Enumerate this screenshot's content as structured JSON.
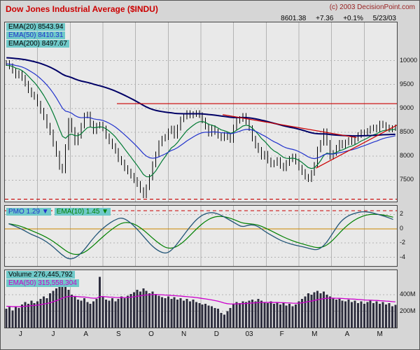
{
  "header": {
    "title": "Dow Jones Industrial Average ($INDU)",
    "copyright": "(c) 2003 DecisionPoint.com",
    "quote": {
      "last": "8601.38",
      "change": "+7.36",
      "change_pct": "+0.1%",
      "date": "5/23/03"
    }
  },
  "x_axis": {
    "month_labels": [
      "J",
      "J",
      "A",
      "S",
      "O",
      "N",
      "D",
      "03",
      "F",
      "M",
      "A",
      "M"
    ]
  },
  "colors": {
    "title": "#cc0000",
    "copyright": "#992222",
    "legend_bg": "#6fc9c9",
    "page_bg": "#d6d6d6",
    "plot_bg": "#e9e9e9",
    "grid": "#b3b3b3",
    "price_bar": "#000000",
    "trendline": "#cc0000",
    "ema20": "#007a33",
    "ema50": "#2233cc",
    "ema200": "#000066",
    "pmo": "#225577",
    "pmo_ema": "#008000",
    "zero_line": "#cc8800",
    "volume_bar": "#2e2e3e",
    "volume_ema": "#cc00cc"
  },
  "chart_data": [
    {
      "type": "ohlc-bar",
      "name": "price",
      "title": "Dow Jones Industrial Average ($INDU)",
      "y_axis": {
        "min": 7050,
        "max": 10800,
        "ticks": [
          10000,
          9500,
          9000,
          8500,
          8000,
          7500
        ]
      },
      "legend": [
        {
          "label": "EMA(20)",
          "value": "8543.94",
          "text_color": "#000000"
        },
        {
          "label": "EMA(50)",
          "value": "8410.31",
          "text_color": "#2233cc"
        },
        {
          "label": "EMA(200)",
          "value": "8497.67",
          "text_color": "#000000"
        }
      ],
      "closes": [
        9950,
        9880,
        9790,
        9690,
        9740,
        9640,
        9520,
        9380,
        9290,
        9240,
        9100,
        8950,
        8820,
        8640,
        8500,
        8260,
        8050,
        7780,
        7702,
        8190,
        8740,
        8550,
        8290,
        8430,
        8640,
        8850,
        8870,
        8680,
        8520,
        8640,
        8660,
        8580,
        8420,
        8310,
        8210,
        8110,
        7940,
        7870,
        7750,
        7680,
        7590,
        7500,
        7420,
        7290,
        7180,
        7350,
        7560,
        7830,
        8040,
        8270,
        8370,
        8400,
        8520,
        8580,
        8430,
        8600,
        8770,
        8830,
        8900,
        8850,
        8880,
        8900,
        8860,
        8750,
        8620,
        8470,
        8590,
        8510,
        8430,
        8380,
        8450,
        8400,
        8340,
        8600,
        8740,
        8780,
        8840,
        8720,
        8590,
        8370,
        8220,
        8130,
        7990,
        8050,
        7910,
        7830,
        7860,
        7920,
        7800,
        7750,
        7860,
        7940,
        7990,
        7890,
        7760,
        7670,
        7570,
        7520,
        7650,
        7820,
        8140,
        8280,
        8520,
        8280,
        7990,
        8070,
        8180,
        8280,
        8220,
        8290,
        8340,
        8300,
        8370,
        8440,
        8500,
        8480,
        8530,
        8580,
        8600,
        8560,
        8680,
        8650,
        8600,
        8560,
        8590,
        8601
      ],
      "bar_extension": 60,
      "emas": [
        {
          "label": "EMA(20)",
          "alpha": 0.18,
          "seed": 9900,
          "color_key": "ema20",
          "width": 1.2
        },
        {
          "label": "EMA(50)",
          "alpha": 0.077,
          "seed": 9930,
          "color_key": "ema50",
          "width": 1.2
        },
        {
          "label": "EMA(200)",
          "alpha": 0.02,
          "seed": 10060,
          "color_key": "ema200",
          "width": 2
        }
      ],
      "trendlines": [
        {
          "i1": 36,
          "p1": 9100,
          "i2": 126,
          "p2": 9100,
          "dash": ""
        },
        {
          "i1": 70,
          "p1": 8870,
          "i2": 113,
          "p2": 8390,
          "dash": ""
        },
        {
          "i1": 100,
          "p1": 7750,
          "i2": 126,
          "p2": 8650,
          "dash": ""
        },
        {
          "i1": 0,
          "p1": 7100,
          "i2": 126,
          "p2": 7100,
          "dash": "5,4"
        }
      ]
    },
    {
      "type": "line",
      "name": "pmo",
      "y_axis": {
        "min": -5.2,
        "max": 3.2,
        "ticks": [
          2,
          0,
          -2,
          -4
        ]
      },
      "legend": [
        {
          "label": "PMO",
          "value": "1.29",
          "arrow": "▼",
          "text_color": "#2233cc"
        },
        {
          "label": "EMA(10)",
          "value": "1.45",
          "arrow": "▼",
          "text_color": "#008000"
        }
      ],
      "values": [
        0.7,
        0.3,
        -0.2,
        -0.8,
        -1.2,
        -1.8,
        -2.6,
        -3.6,
        -4.3,
        -4.0,
        -3.0,
        -1.6,
        -0.4,
        0.5,
        1.2,
        1.6,
        1.0,
        0.0,
        -1.2,
        -2.4,
        -3.2,
        -3.5,
        -2.6,
        -1.2,
        0.2,
        1.4,
        2.1,
        2.3,
        2.0,
        1.4,
        0.8,
        0.2,
        0.6,
        0.4,
        -0.4,
        -1.0,
        -1.6,
        -2.0,
        -2.3,
        -2.5,
        -2.8,
        -3.0,
        -2.2,
        -0.6,
        1.0,
        1.8,
        2.2,
        2.4,
        2.3,
        2.0,
        1.7,
        1.29
      ],
      "ema_alpha": 0.45,
      "zero_line": 0,
      "ref_line": {
        "value": 2.5,
        "dash": "5,4"
      }
    },
    {
      "type": "bar",
      "name": "volume",
      "y_axis": {
        "min": 0,
        "max": 700,
        "ticks": [
          400,
          200
        ],
        "tick_suffix": "M"
      },
      "legend": [
        {
          "label": "Volume",
          "value": "276,445,792",
          "text_color": "#000000"
        },
        {
          "label": "EMA(50)",
          "value": "315,558,304",
          "text_color": "#cc00cc"
        }
      ],
      "values_millions": [
        230,
        250,
        210,
        260,
        240,
        280,
        310,
        290,
        330,
        300,
        320,
        350,
        380,
        360,
        420,
        450,
        480,
        540,
        560,
        520,
        460,
        400,
        380,
        340,
        330,
        360,
        310,
        290,
        320,
        350,
        620,
        380,
        340,
        330,
        360,
        320,
        350,
        380,
        360,
        390,
        410,
        430,
        460,
        440,
        480,
        450,
        420,
        440,
        410,
        390,
        370,
        360,
        380,
        350,
        370,
        340,
        360,
        330,
        350,
        320,
        340,
        310,
        300,
        280,
        290,
        270,
        260,
        240,
        230,
        180,
        160,
        200,
        240,
        290,
        310,
        300,
        320,
        310,
        330,
        340,
        320,
        350,
        330,
        310,
        300,
        320,
        290,
        310,
        280,
        300,
        270,
        290,
        260,
        280,
        320,
        350,
        380,
        420,
        400,
        430,
        450,
        420,
        440,
        400,
        380,
        360,
        340,
        350,
        330,
        320,
        340,
        310,
        330,
        300,
        320,
        290,
        310,
        330,
        300,
        320,
        290,
        310,
        280,
        300,
        260,
        276
      ],
      "ema_alpha": 0.077,
      "ema_seed": 260
    }
  ]
}
